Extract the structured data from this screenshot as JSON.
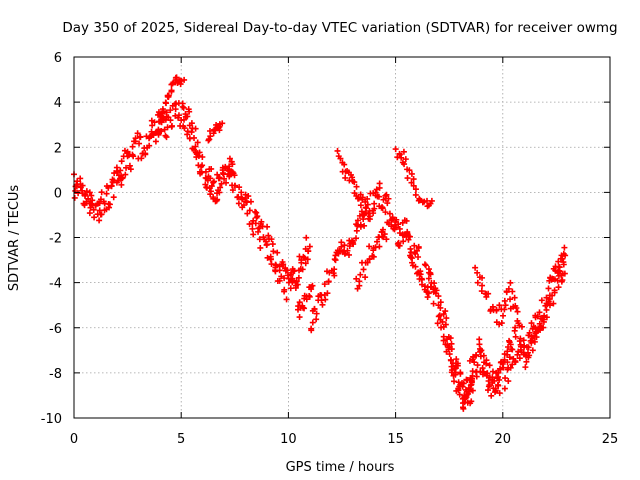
{
  "chart_data": {
    "type": "scatter",
    "title": "Day 350 of 2025, Sidereal Day-to-day VTEC variation (SDTVAR) for receiver owmg",
    "xlabel": "GPS time / hours",
    "ylabel": "SDTVAR / TECUs",
    "xlim": [
      0,
      25
    ],
    "ylim": [
      -10,
      6
    ],
    "xticks": [
      0,
      5,
      10,
      15,
      20,
      25
    ],
    "yticks": [
      -10,
      -8,
      -6,
      -4,
      -2,
      0,
      2,
      4,
      6
    ],
    "grid": true,
    "marker": "+",
    "series": [
      {
        "name": "SDTVAR",
        "color": "#ff0000",
        "trend": [
          [
            0.0,
            0.8
          ],
          [
            0.4,
            0.3
          ],
          [
            0.8,
            -0.5
          ],
          [
            1.2,
            -0.8
          ],
          [
            1.6,
            0.2
          ],
          [
            2.0,
            1.1
          ],
          [
            2.5,
            1.6
          ],
          [
            3.0,
            1.5
          ],
          [
            3.5,
            2.4
          ],
          [
            4.0,
            2.7
          ],
          [
            4.5,
            3.2
          ],
          [
            5.0,
            3.2
          ],
          [
            5.4,
            2.4
          ],
          [
            5.8,
            1.2
          ],
          [
            6.2,
            0.2
          ],
          [
            6.6,
            -0.4
          ],
          [
            7.0,
            0.6
          ],
          [
            7.4,
            0.9
          ],
          [
            7.8,
            0.0
          ],
          [
            8.2,
            -0.8
          ],
          [
            8.6,
            -1.6
          ],
          [
            9.0,
            -2.3
          ],
          [
            9.4,
            -3.2
          ],
          [
            9.8,
            -3.8
          ],
          [
            10.2,
            -3.4
          ],
          [
            10.6,
            -3.0
          ],
          [
            11.0,
            -2.4
          ],
          [
            11.4,
            -4.6
          ],
          [
            11.8,
            -3.5
          ],
          [
            12.2,
            -3.0
          ],
          [
            12.6,
            -2.6
          ],
          [
            13.0,
            -2.2
          ],
          [
            13.5,
            -1.0
          ],
          [
            14.0,
            -0.5
          ],
          [
            14.4,
            -0.7
          ],
          [
            14.8,
            -1.5
          ],
          [
            15.2,
            -1.8
          ],
          [
            15.6,
            -2.1
          ],
          [
            16.0,
            -3.6
          ],
          [
            16.5,
            -4.2
          ],
          [
            17.0,
            -5.0
          ],
          [
            17.4,
            -6.5
          ],
          [
            17.8,
            -8.0
          ],
          [
            18.2,
            -9.0
          ],
          [
            18.6,
            -7.4
          ],
          [
            19.0,
            -7.0
          ],
          [
            19.4,
            -8.2
          ],
          [
            19.8,
            -8.0
          ],
          [
            20.2,
            -7.2
          ],
          [
            20.6,
            -6.4
          ],
          [
            21.0,
            -6.8
          ],
          [
            21.4,
            -7.0
          ],
          [
            21.8,
            -6.0
          ],
          [
            22.2,
            -5.0
          ],
          [
            22.6,
            -4.2
          ],
          [
            22.8,
            -3.6
          ]
        ],
        "segments": [
          {
            "path": [
              [
                0.0,
                0.3
              ],
              [
                0.5,
                0.0
              ],
              [
                1.0,
                -1.0
              ],
              [
                1.5,
                -0.3
              ],
              [
                2.0,
                0.6
              ],
              [
                2.4,
                1.2
              ]
            ],
            "spread": 0.55,
            "count": 70
          },
          {
            "path": [
              [
                2.4,
                1.4
              ],
              [
                3.0,
                2.0
              ],
              [
                3.6,
                2.6
              ],
              [
                4.0,
                3.0
              ],
              [
                4.4,
                3.1
              ],
              [
                5.0,
                3.6
              ],
              [
                5.4,
                3.0
              ],
              [
                5.8,
                1.6
              ],
              [
                6.2,
                0.6
              ],
              [
                6.6,
                0.2
              ],
              [
                7.0,
                1.0
              ],
              [
                7.4,
                1.2
              ]
            ],
            "spread": 0.65,
            "count": 150
          },
          {
            "path": [
              [
                3.9,
                2.9
              ],
              [
                4.3,
                4.1
              ],
              [
                4.7,
                5.0
              ],
              [
                5.1,
                4.9
              ]
            ],
            "spread": 0.15,
            "count": 30
          },
          {
            "path": [
              [
                6.2,
                2.3
              ],
              [
                6.6,
                2.8
              ],
              [
                6.9,
                3.0
              ]
            ],
            "spread": 0.2,
            "count": 16
          },
          {
            "path": [
              [
                7.2,
                0.9
              ],
              [
                7.8,
                0.0
              ],
              [
                8.4,
                -1.4
              ],
              [
                9.0,
                -2.2
              ],
              [
                9.5,
                -3.3
              ],
              [
                10.0,
                -4.2
              ],
              [
                10.4,
                -3.6
              ],
              [
                11.0,
                -2.4
              ]
            ],
            "spread": 0.7,
            "count": 110
          },
          {
            "path": [
              [
                10.4,
                -5.4
              ],
              [
                10.8,
                -4.9
              ],
              [
                11.1,
                -4.2
              ]
            ],
            "spread": 0.35,
            "count": 18
          },
          {
            "path": [
              [
                11.0,
                -5.8
              ],
              [
                11.4,
                -5.0
              ],
              [
                11.8,
                -4.2
              ],
              [
                12.2,
                -3.3
              ]
            ],
            "spread": 0.45,
            "count": 26
          },
          {
            "path": [
              [
                12.2,
                -3.0
              ],
              [
                12.8,
                -2.4
              ],
              [
                13.4,
                -1.2
              ],
              [
                13.8,
                -0.6
              ],
              [
                14.3,
                -0.1
              ],
              [
                14.8,
                -1.2
              ],
              [
                15.2,
                -1.9
              ],
              [
                15.6,
                -1.4
              ]
            ],
            "spread": 0.55,
            "count": 90
          },
          {
            "path": [
              [
                12.3,
                1.6
              ],
              [
                12.8,
                0.6
              ],
              [
                13.3,
                -0.3
              ],
              [
                13.8,
                -1.0
              ]
            ],
            "spread": 0.35,
            "count": 30
          },
          {
            "path": [
              [
                13.2,
                -4.2
              ],
              [
                13.7,
                -2.9
              ],
              [
                14.2,
                -2.1
              ],
              [
                14.6,
                -1.6
              ]
            ],
            "spread": 0.45,
            "count": 30
          },
          {
            "path": [
              [
                15.0,
                1.9
              ],
              [
                15.4,
                1.5
              ],
              [
                15.8,
                0.4
              ],
              [
                16.2,
                -0.4
              ],
              [
                16.8,
                -0.6
              ]
            ],
            "spread": 0.3,
            "count": 28
          },
          {
            "path": [
              [
                15.6,
                -2.0
              ],
              [
                16.2,
                -3.6
              ],
              [
                16.8,
                -4.4
              ],
              [
                17.4,
                -6.4
              ],
              [
                17.8,
                -8.0
              ],
              [
                18.2,
                -9.1
              ],
              [
                18.6,
                -8.4
              ]
            ],
            "spread": 0.75,
            "count": 130
          },
          {
            "path": [
              [
                18.5,
                -8.2
              ],
              [
                19.0,
                -7.0
              ],
              [
                19.5,
                -8.6
              ],
              [
                20.0,
                -8.2
              ],
              [
                20.5,
                -6.8
              ],
              [
                21.0,
                -6.4
              ]
            ],
            "spread": 0.8,
            "count": 100
          },
          {
            "path": [
              [
                18.7,
                -3.4
              ],
              [
                19.3,
                -4.6
              ],
              [
                19.9,
                -5.6
              ],
              [
                20.3,
                -4.4
              ],
              [
                20.8,
                -6.0
              ]
            ],
            "spread": 0.55,
            "count": 40
          },
          {
            "path": [
              [
                21.0,
                -7.2
              ],
              [
                21.5,
                -6.2
              ],
              [
                22.0,
                -5.0
              ],
              [
                22.5,
                -3.8
              ],
              [
                22.9,
                -3.0
              ]
            ],
            "spread": 0.7,
            "count": 90
          }
        ]
      }
    ]
  }
}
